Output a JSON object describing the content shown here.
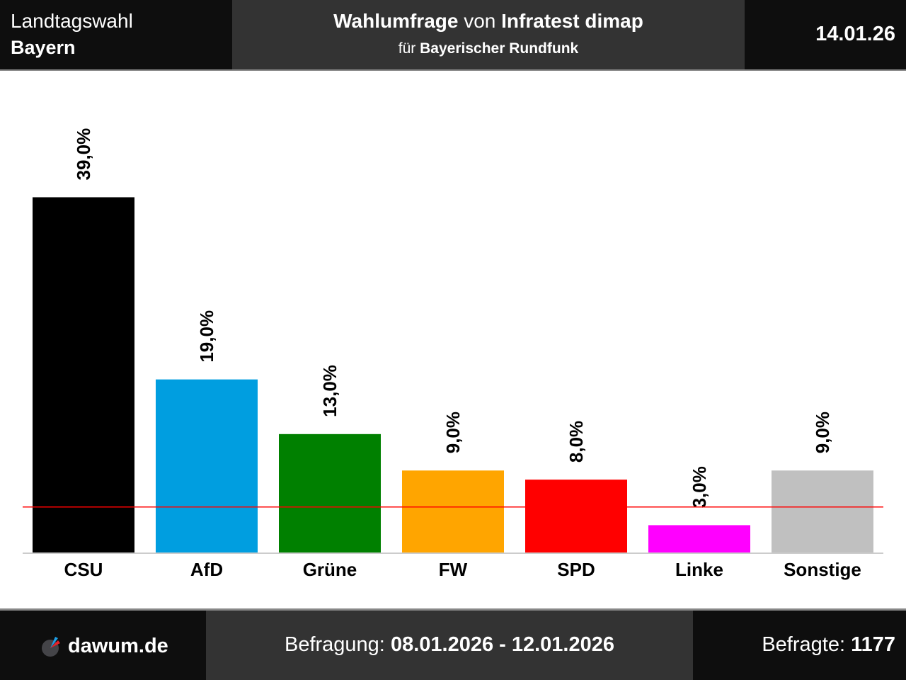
{
  "header": {
    "election_type": "Landtagswahl",
    "region": "Bayern",
    "title_bold1": "Wahlumfrage",
    "title_mid": " von ",
    "title_bold2": "Infratest dimap",
    "subtitle_prefix": "für ",
    "subtitle_client": "Bayerischer Rundfunk",
    "date": "14.01.26"
  },
  "footer": {
    "logo_text": "dawum.de",
    "survey_label": "Befragung: ",
    "survey_period": "08.01.2026 - 12.01.2026",
    "respondents_label": "Befragte: ",
    "respondents": "1177"
  },
  "chart_data": {
    "type": "bar",
    "title": "Wahlumfrage von Infratest dimap für Bayerischer Rundfunk",
    "xlabel": "",
    "ylabel": "",
    "categories": [
      "CSU",
      "AfD",
      "Grüne",
      "FW",
      "SPD",
      "Linke",
      "Sonstige"
    ],
    "values": [
      39.0,
      19.0,
      13.0,
      9.0,
      8.0,
      3.0,
      9.0
    ],
    "labels": [
      "39,0%",
      "19,0%",
      "13,0%",
      "9,0%",
      "8,0%",
      "3,0%",
      "9,0%"
    ],
    "colors": [
      "#000000",
      "#009ee0",
      "#008000",
      "#ffa500",
      "#ff0000",
      "#ff00ff",
      "#c0c0c0"
    ],
    "threshold": 5.0,
    "threshold_color": "#ff0000",
    "ylim": [
      0,
      45
    ],
    "grid": false,
    "legend": "none"
  }
}
